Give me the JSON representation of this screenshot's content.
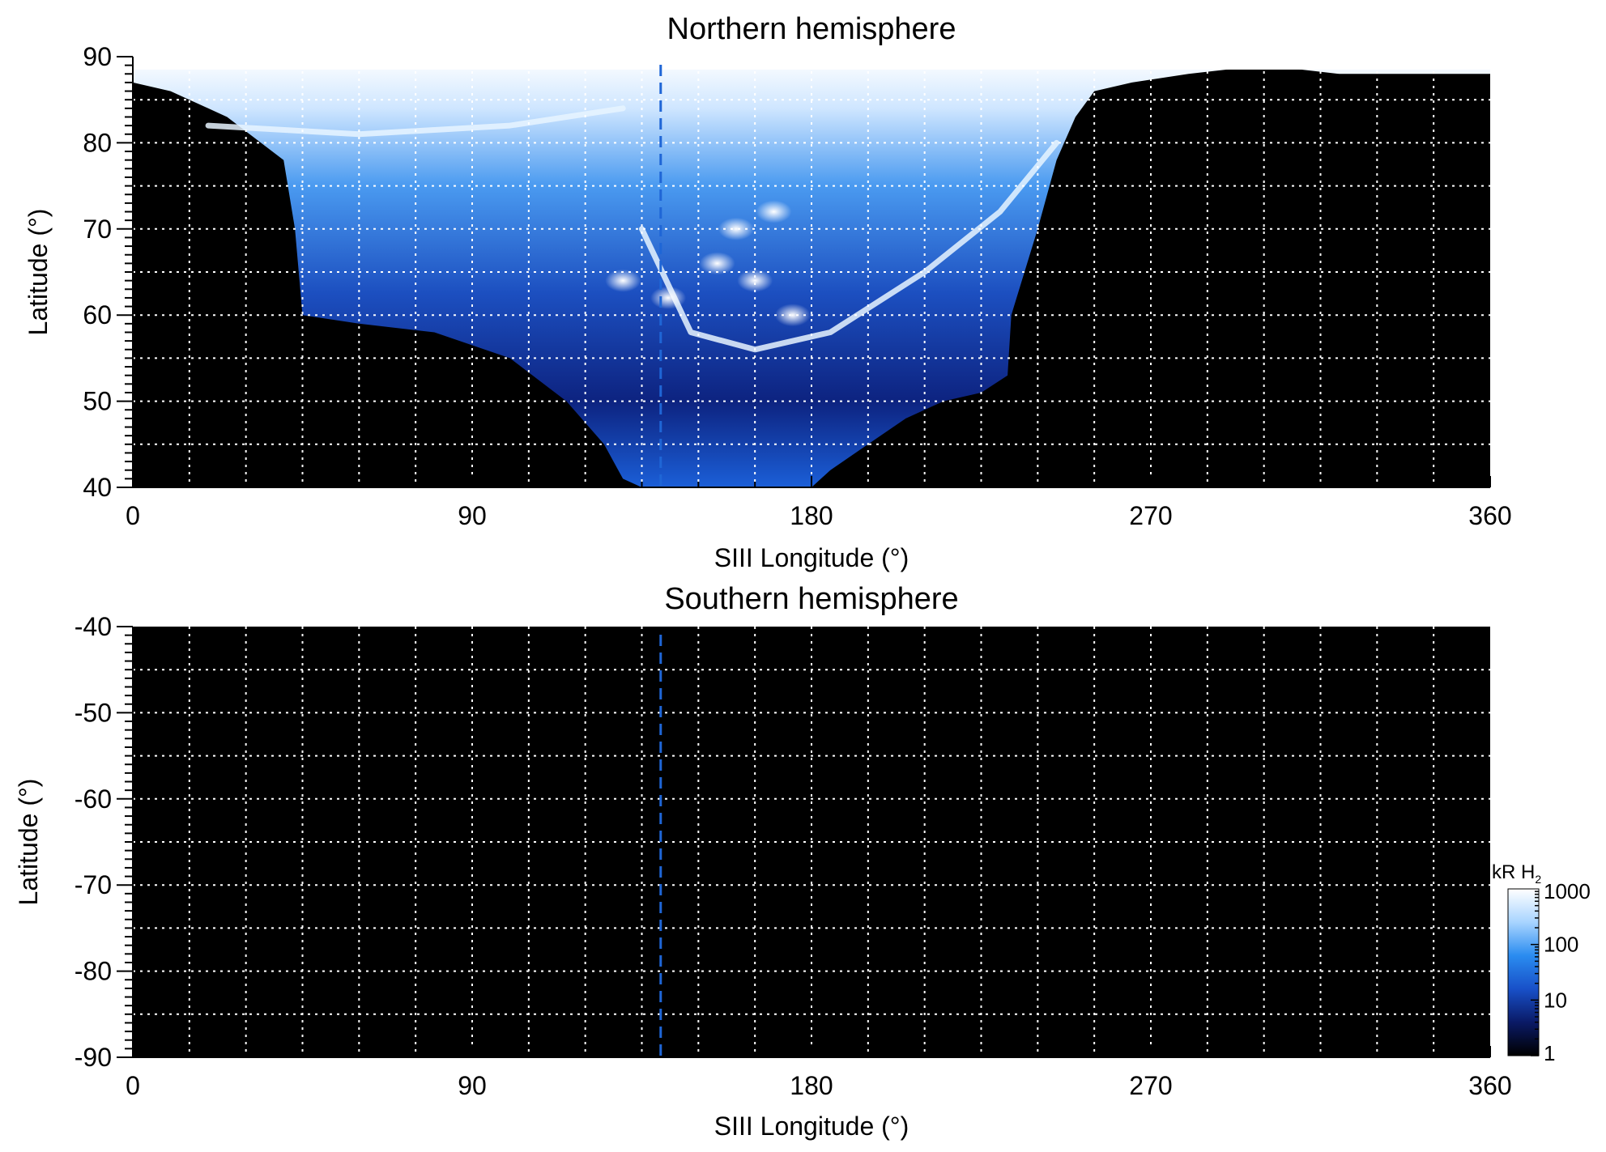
{
  "chart_data": [
    {
      "type": "heatmap",
      "title": "Northern hemisphere",
      "xlabel": "SIII Longitude (°)",
      "ylabel": "Latitude (°)",
      "xlim": [
        0,
        360
      ],
      "ylim": [
        40,
        90
      ],
      "x_ticks": [
        0,
        90,
        180,
        270,
        360
      ],
      "x_tick_labels": [
        "0",
        "90",
        "180",
        "270",
        "360"
      ],
      "y_ticks": [
        40,
        50,
        60,
        70,
        80,
        90
      ],
      "y_tick_labels": [
        "40",
        "50",
        "60",
        "70",
        "80",
        "90"
      ],
      "grid": true,
      "grid_x_step": 15,
      "grid_y_step": 5,
      "reference_longitude": 140,
      "reference_line_color": "#1f66d6",
      "emission_region": {
        "lower_boundary": [
          [
            0,
            87
          ],
          [
            10,
            86
          ],
          [
            15,
            85
          ],
          [
            25,
            83
          ],
          [
            40,
            78
          ],
          [
            43,
            70
          ],
          [
            45,
            60
          ],
          [
            60,
            59
          ],
          [
            80,
            58
          ],
          [
            100,
            55
          ],
          [
            115,
            50
          ],
          [
            125,
            45
          ],
          [
            130,
            41
          ],
          [
            135,
            40
          ],
          [
            180,
            40
          ],
          [
            185,
            42
          ],
          [
            195,
            45
          ],
          [
            205,
            48
          ],
          [
            215,
            50
          ],
          [
            225,
            51
          ],
          [
            232,
            53
          ],
          [
            233,
            60
          ],
          [
            240,
            70
          ],
          [
            245,
            78
          ],
          [
            250,
            83
          ],
          [
            255,
            86
          ],
          [
            265,
            87
          ],
          [
            280,
            88
          ],
          [
            300,
            89
          ],
          [
            320,
            88
          ],
          [
            340,
            88
          ],
          [
            360,
            88
          ]
        ],
        "arcs": [
          [
            [
              135,
              70
            ],
            [
              148,
              58
            ],
            [
              165,
              56
            ],
            [
              185,
              58
            ],
            [
              210,
              65
            ],
            [
              230,
              72
            ],
            [
              245,
              80
            ]
          ],
          [
            [
              20,
              82
            ],
            [
              60,
              81
            ],
            [
              100,
              82
            ],
            [
              130,
              84
            ]
          ]
        ],
        "bright_spots": [
          [
            130,
            64
          ],
          [
            142,
            62
          ],
          [
            155,
            66
          ],
          [
            165,
            64
          ],
          [
            170,
            72
          ],
          [
            160,
            70
          ],
          [
            175,
            60
          ]
        ]
      }
    },
    {
      "type": "heatmap",
      "title": "Southern hemisphere",
      "xlabel": "SIII Longitude (°)",
      "ylabel": "Latitude (°)",
      "xlim": [
        0,
        360
      ],
      "ylim": [
        -90,
        -40
      ],
      "x_ticks": [
        0,
        90,
        180,
        270,
        360
      ],
      "x_tick_labels": [
        "0",
        "90",
        "180",
        "270",
        "360"
      ],
      "y_ticks": [
        -90,
        -80,
        -70,
        -60,
        -50,
        -40
      ],
      "y_tick_labels": [
        "-90",
        "-80",
        "-70",
        "-60",
        "-50",
        "-40"
      ],
      "grid": true,
      "grid_x_step": 15,
      "grid_y_step": 5,
      "reference_longitude": 140,
      "reference_line_color": "#1f66d6"
    }
  ],
  "colorbar": {
    "label": "kR H",
    "label_subscript": "2",
    "scale": "log",
    "ticks": [
      1,
      10,
      100,
      1000
    ],
    "tick_labels": [
      "1",
      "10",
      "100",
      "1000"
    ],
    "colors": [
      "#000000",
      "#0a1a66",
      "#1850c8",
      "#2a8cf0",
      "#a8d4ff",
      "#ffffff"
    ]
  }
}
